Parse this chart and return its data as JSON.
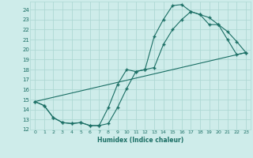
{
  "xlabel": "Humidex (Indice chaleur)",
  "bg_color": "#ceecea",
  "grid_color": "#aed8d4",
  "line_color": "#1a6e64",
  "ylim": [
    12,
    24.8
  ],
  "xlim": [
    -0.5,
    23.5
  ],
  "yticks": [
    12,
    13,
    14,
    15,
    16,
    17,
    18,
    19,
    20,
    21,
    22,
    23,
    24
  ],
  "xticks": [
    0,
    1,
    2,
    3,
    4,
    5,
    6,
    7,
    8,
    9,
    10,
    11,
    12,
    13,
    14,
    15,
    16,
    17,
    18,
    19,
    20,
    21,
    22,
    23
  ],
  "line1_x": [
    0,
    1,
    2,
    3,
    4,
    5,
    6,
    7,
    8,
    9,
    10,
    11,
    12,
    13,
    14,
    15,
    16,
    17,
    18,
    19,
    20,
    21,
    22,
    23
  ],
  "line1_y": [
    14.8,
    14.4,
    13.2,
    12.7,
    12.6,
    12.7,
    12.4,
    12.4,
    12.6,
    14.2,
    16.1,
    17.8,
    18.0,
    21.3,
    23.0,
    24.4,
    24.5,
    23.8,
    23.5,
    23.2,
    22.5,
    21.8,
    20.8,
    19.7
  ],
  "line2_x": [
    0,
    1,
    2,
    3,
    4,
    5,
    6,
    7,
    8,
    9,
    10,
    11,
    12,
    13,
    14,
    15,
    16,
    17,
    18,
    19,
    20,
    21,
    22,
    23
  ],
  "line2_y": [
    14.8,
    14.4,
    13.2,
    12.7,
    12.6,
    12.7,
    12.4,
    12.4,
    14.2,
    16.5,
    18.0,
    17.8,
    18.0,
    18.2,
    20.5,
    22.0,
    23.0,
    23.8,
    23.5,
    22.5,
    22.5,
    21.0,
    19.5,
    19.7
  ],
  "line3_x": [
    0,
    23
  ],
  "line3_y": [
    14.8,
    19.7
  ]
}
